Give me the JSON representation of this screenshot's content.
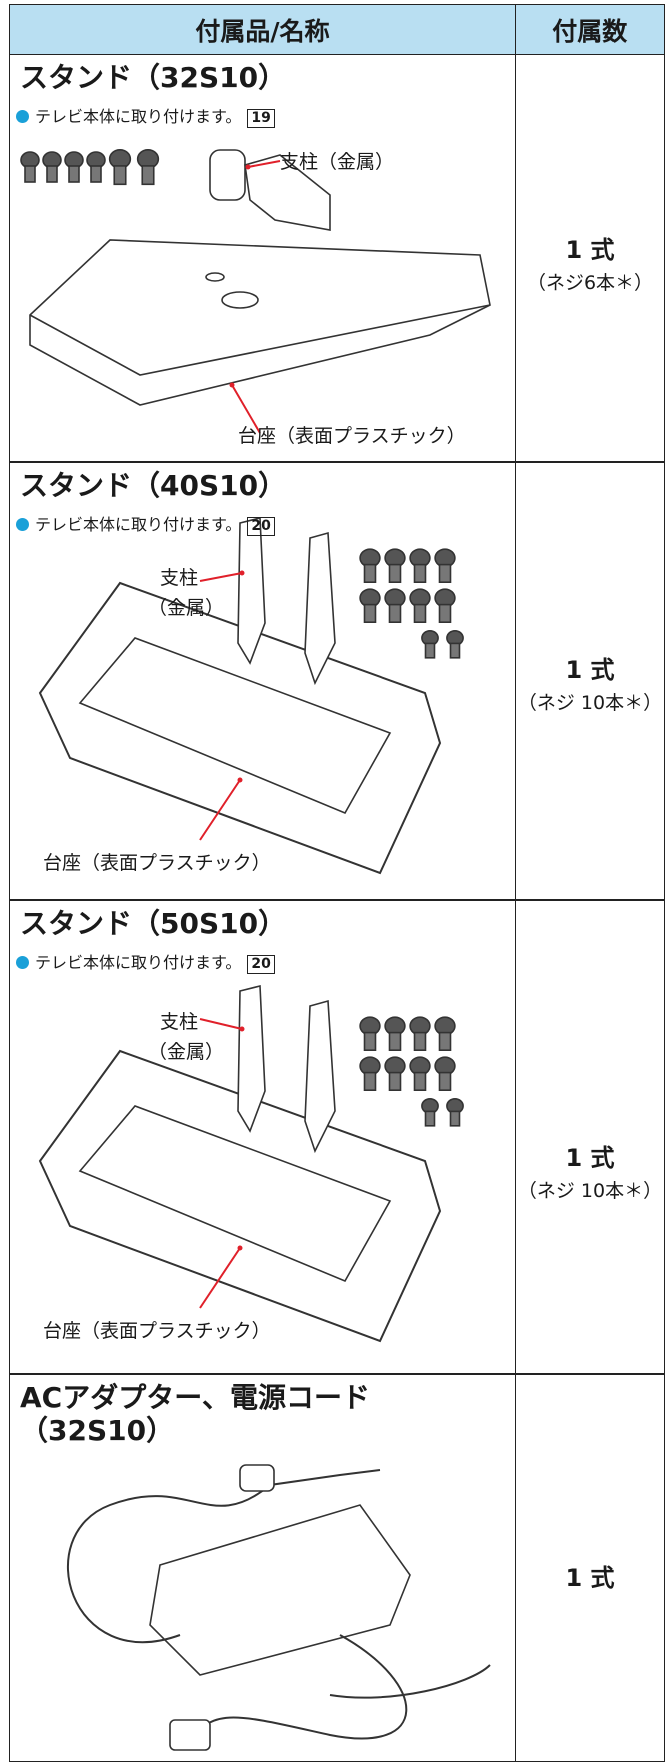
{
  "table": {
    "header": [
      "付属品/名称",
      "付属数"
    ],
    "rows": [
      {
        "name_lines": [
          "スタンド（32S10）"
        ],
        "note": "テレビ本体に取り付けます。",
        "page": "19",
        "labels": [
          "支柱（金属）",
          "台座（表面プラスチック）"
        ],
        "count": "1 式",
        "count_note": "（ネジ6本＊）"
      },
      {
        "name_lines": [
          "スタンド（40S10）"
        ],
        "note": "テレビ本体に取り付けます。",
        "page": "20",
        "labels": [
          "支柱",
          "（金属）",
          "台座（表面プラスチック）"
        ],
        "count": "1 式",
        "count_note": "（ネジ 10本＊）"
      },
      {
        "name_lines": [
          "スタンド（50S10）"
        ],
        "note": "テレビ本体に取り付けます。",
        "page": "20",
        "labels": [
          "支柱",
          "（金属）",
          "台座（表面プラスチック）"
        ],
        "count": "1 式",
        "count_note": "（ネジ 10本＊）"
      },
      {
        "name_lines": [
          "ACアダプター、電源コード",
          "（32S10）"
        ],
        "count": "1 式"
      }
    ]
  }
}
